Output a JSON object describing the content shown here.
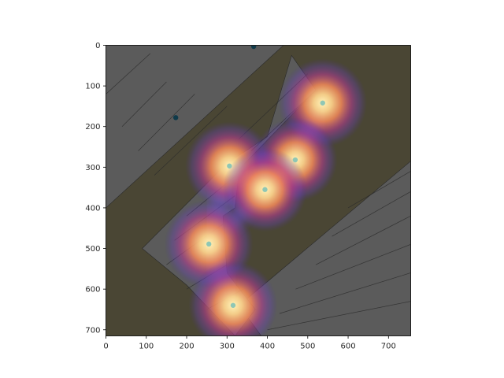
{
  "chart_data": {
    "type": "heatmap",
    "title": "",
    "xlabel": "",
    "ylabel": "",
    "xlim": [
      0,
      755
    ],
    "ylim": [
      715,
      0
    ],
    "x_ticks": [
      0,
      100,
      200,
      300,
      400,
      500,
      600,
      700
    ],
    "y_ticks": [
      0,
      100,
      200,
      300,
      400,
      500,
      600,
      700
    ],
    "background": "floor plan image with heatmap overlay",
    "colormap": "magma",
    "grid": false,
    "hotspots": [
      {
        "x": 537,
        "y": 142,
        "intensity": 1.0
      },
      {
        "x": 306,
        "y": 297,
        "intensity": 1.0
      },
      {
        "x": 469,
        "y": 282,
        "intensity": 0.95
      },
      {
        "x": 394,
        "y": 355,
        "intensity": 0.95
      },
      {
        "x": 255,
        "y": 489,
        "intensity": 1.0
      },
      {
        "x": 315,
        "y": 640,
        "intensity": 1.0
      }
    ],
    "markers": [
      {
        "x": 366,
        "y": 3,
        "color": "#0f3a4a"
      },
      {
        "x": 173,
        "y": 178,
        "color": "#0f3a4a"
      },
      {
        "x": 537,
        "y": 142,
        "color": "#8fc7b5"
      },
      {
        "x": 306,
        "y": 297,
        "color": "#8fc7b5"
      },
      {
        "x": 469,
        "y": 282,
        "color": "#8fc7b5"
      },
      {
        "x": 394,
        "y": 355,
        "color": "#8fc7b5"
      },
      {
        "x": 255,
        "y": 489,
        "color": "#8fc7b5"
      },
      {
        "x": 315,
        "y": 640,
        "color": "#8fc7b5"
      }
    ],
    "colors": {
      "background_fill": "#4a4634",
      "floor": "#5b5b5b",
      "floor_lines": "#2a2a2a",
      "hot_core": "#fcefb0",
      "hot_mid": "#f58a5a",
      "hot_outer": "#b43f8f",
      "glow": "#7d5fd0"
    }
  }
}
